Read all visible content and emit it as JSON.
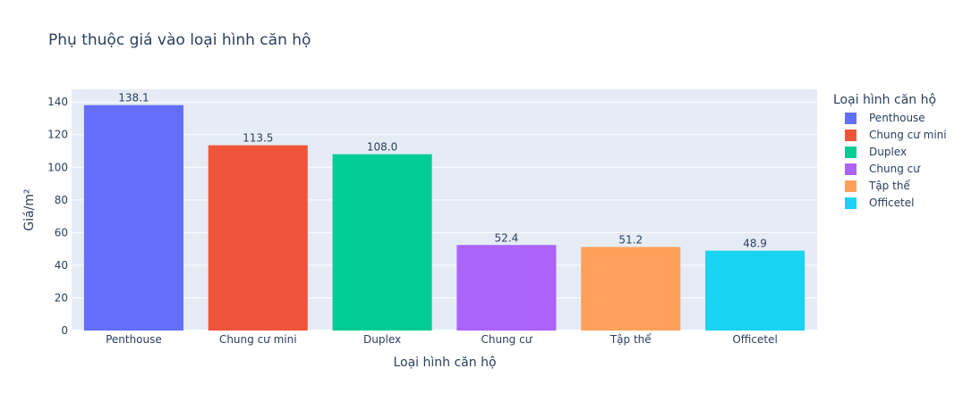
{
  "chart_data": {
    "type": "bar",
    "title": "Phụ thuộc giá vào loại hình căn hộ",
    "xlabel": "Loại hình căn hộ",
    "ylabel": "Giá/m²",
    "ylim": [
      0,
      140
    ],
    "yticks": [
      0,
      20,
      40,
      60,
      80,
      100,
      120,
      140
    ],
    "categories": [
      "Penthouse",
      "Chung cư mini",
      "Duplex",
      "Chung cư",
      "Tập thể",
      "Officetel"
    ],
    "values": [
      138.1,
      113.5,
      108.0,
      52.4,
      51.2,
      48.9
    ],
    "value_labels": [
      "138.1",
      "113.5",
      "108.0",
      "52.4",
      "51.2",
      "48.9"
    ],
    "colors": [
      "#636efa",
      "#ef553b",
      "#00cc96",
      "#ab63fa",
      "#ffa15a",
      "#19d3f3"
    ],
    "grid": true,
    "plot_background": "#e5ecf6",
    "legend": {
      "title": "Loại hình căn hộ",
      "placement": "right",
      "items": [
        "Penthouse",
        "Chung cư mini",
        "Duplex",
        "Chung cư",
        "Tập thể",
        "Officetel"
      ]
    }
  }
}
